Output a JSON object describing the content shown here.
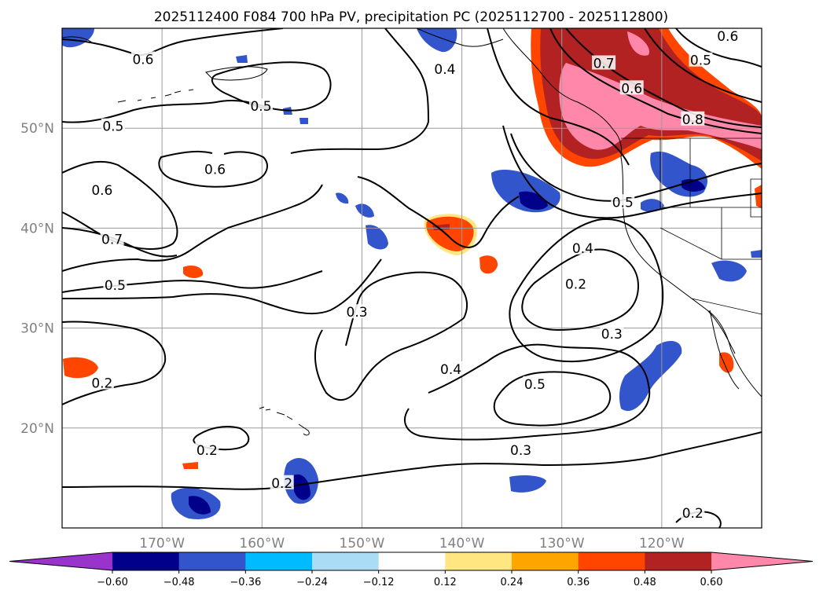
{
  "chart_data": {
    "type": "heatmap",
    "title": "2025112400 F084 700 hPa PV, precipitation PC (2025112700 - 2025112800)",
    "map": {
      "projection": "PlateCarree",
      "lon_range": [
        -180,
        -110
      ],
      "lat_range": [
        10,
        60
      ],
      "lat_ticks": [
        {
          "lat": 50,
          "label": "50°N"
        },
        {
          "lat": 40,
          "label": "40°N"
        },
        {
          "lat": 30,
          "label": "30°N"
        },
        {
          "lat": 20,
          "label": "20°N"
        }
      ],
      "lon_ticks": [
        {
          "lon": -170,
          "label": "170°W"
        },
        {
          "lon": -160,
          "label": "160°W"
        },
        {
          "lon": -150,
          "label": "150°W"
        },
        {
          "lon": -140,
          "label": "140°W"
        },
        {
          "lon": -130,
          "label": "130°W"
        },
        {
          "lon": -120,
          "label": "120°W"
        }
      ],
      "grid": true,
      "coastlines": true
    },
    "colorbar": {
      "orientation": "horizontal",
      "extend": "both",
      "levels": [
        -0.6,
        -0.48,
        -0.36,
        -0.24,
        -0.12,
        0.12,
        0.24,
        0.36,
        0.48,
        0.6
      ],
      "tick_labels": [
        "−0.60",
        "−0.48",
        "−0.36",
        "−0.24",
        "−0.12",
        "0.12",
        "0.24",
        "0.36",
        "0.48",
        "0.60"
      ],
      "colors": [
        "#9933cc",
        "#00008b",
        "#3355cc",
        "#00bbff",
        "#aaddf5",
        "#ffffff",
        "#ffe680",
        "#ffa500",
        "#ff4500",
        "#b22222",
        "#ff88aa"
      ]
    },
    "pv_contours": {
      "levels": [
        0.2,
        0.3,
        0.4,
        0.5,
        0.6,
        0.7,
        0.8
      ],
      "labels": [
        {
          "text": "0.6",
          "lon": -171.9,
          "lat": 56.9
        },
        {
          "text": "0.5",
          "lon": -174.9,
          "lat": 50.2
        },
        {
          "text": "0.5",
          "lon": -160.1,
          "lat": 52.2
        },
        {
          "text": "0.4",
          "lon": -141.7,
          "lat": 55.9
        },
        {
          "text": "0.6",
          "lon": -164.7,
          "lat": 45.9
        },
        {
          "text": "0.6",
          "lon": -176.0,
          "lat": 43.8
        },
        {
          "text": "0.7",
          "lon": -175.0,
          "lat": 38.9
        },
        {
          "text": "0.5",
          "lon": -174.7,
          "lat": 34.3
        },
        {
          "text": "0.7",
          "lon": -125.8,
          "lat": 56.5
        },
        {
          "text": "0.6",
          "lon": -123.0,
          "lat": 54.0
        },
        {
          "text": "0.5",
          "lon": -116.1,
          "lat": 56.8
        },
        {
          "text": "0.8",
          "lon": -116.9,
          "lat": 50.9
        },
        {
          "text": "0.6",
          "lon": -113.4,
          "lat": 59.2
        },
        {
          "text": "0.5",
          "lon": -123.9,
          "lat": 42.6
        },
        {
          "text": "0.4",
          "lon": -127.9,
          "lat": 38.0
        },
        {
          "text": "0.2",
          "lon": -128.6,
          "lat": 34.4
        },
        {
          "text": "0.3",
          "lon": -150.5,
          "lat": 31.6
        },
        {
          "text": "0.3",
          "lon": -125.0,
          "lat": 29.4
        },
        {
          "text": "0.4",
          "lon": -141.1,
          "lat": 25.9
        },
        {
          "text": "0.5",
          "lon": -132.7,
          "lat": 24.4
        },
        {
          "text": "0.2",
          "lon": -176.0,
          "lat": 24.5
        },
        {
          "text": "0.2",
          "lon": -165.5,
          "lat": 17.8
        },
        {
          "text": "0.3",
          "lon": -134.1,
          "lat": 17.8
        },
        {
          "text": "0.2",
          "lon": -158.0,
          "lat": 14.5
        },
        {
          "text": "0.2",
          "lon": -116.9,
          "lat": 11.5
        }
      ]
    }
  }
}
